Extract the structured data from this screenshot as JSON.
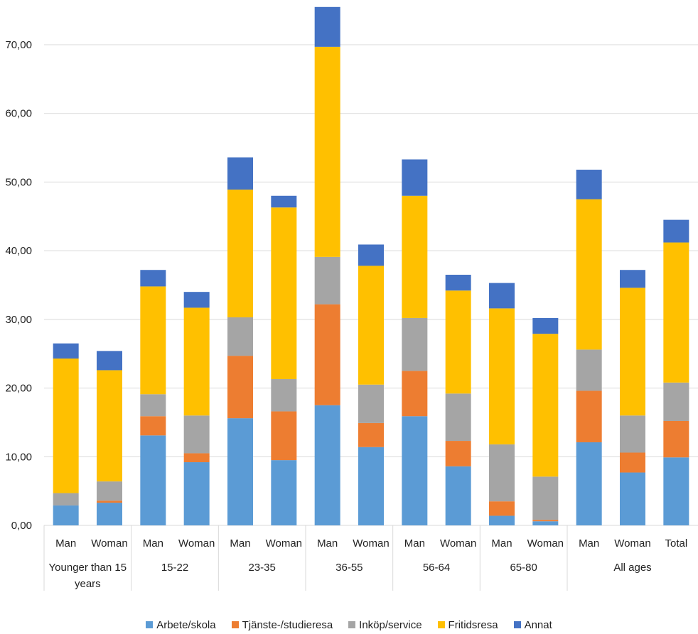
{
  "chart_data": {
    "type": "bar",
    "stacked": true,
    "title": "",
    "xlabel": "",
    "ylabel": "",
    "ylim": [
      0,
      75
    ],
    "yticks": [
      0,
      10,
      20,
      30,
      40,
      50,
      60,
      70
    ],
    "ytick_labels": [
      "0,00",
      "10,00",
      "20,00",
      "30,00",
      "40,00",
      "50,00",
      "60,00",
      "70,00"
    ],
    "grid": true,
    "legend_position": "bottom",
    "categories": [
      "Man",
      "Woman",
      "Man",
      "Woman",
      "Man",
      "Woman",
      "Man",
      "Woman",
      "Man",
      "Woman",
      "Man",
      "Woman",
      "Man",
      "Woman",
      "Total"
    ],
    "groups": [
      {
        "label": "Younger than 15 years",
        "label_lines": [
          "Younger than 15",
          "years"
        ],
        "span": 2
      },
      {
        "label": "15-22",
        "label_lines": [
          "15-22"
        ],
        "span": 2
      },
      {
        "label": "23-35",
        "label_lines": [
          "23-35"
        ],
        "span": 2
      },
      {
        "label": "36-55",
        "label_lines": [
          "36-55"
        ],
        "span": 2
      },
      {
        "label": "56-64",
        "label_lines": [
          "56-64"
        ],
        "span": 2
      },
      {
        "label": "65-80",
        "label_lines": [
          "65-80"
        ],
        "span": 2
      },
      {
        "label": "All ages",
        "label_lines": [
          "All ages"
        ],
        "span": 3
      }
    ],
    "series": [
      {
        "name": "Arbete/skola",
        "color": "#5b9bd5",
        "values": [
          2.9,
          3.3,
          13.1,
          9.2,
          15.6,
          9.5,
          17.5,
          11.4,
          15.9,
          8.6,
          1.4,
          0.6,
          12.1,
          7.7,
          9.9
        ]
      },
      {
        "name": "Tjänste-/studieresa",
        "color": "#ed7d31",
        "values": [
          0.0,
          0.3,
          2.8,
          1.3,
          9.1,
          7.1,
          14.7,
          3.5,
          6.6,
          3.7,
          2.1,
          0.2,
          7.5,
          2.9,
          5.3
        ]
      },
      {
        "name": "Inköp/service",
        "color": "#a5a5a5",
        "values": [
          1.8,
          2.8,
          3.2,
          5.5,
          5.6,
          4.7,
          6.9,
          5.6,
          7.7,
          6.9,
          8.3,
          6.3,
          6.0,
          5.4,
          5.6
        ]
      },
      {
        "name": "Fritidsresa",
        "color": "#ffc000",
        "values": [
          19.6,
          16.2,
          15.7,
          15.7,
          18.6,
          25.0,
          30.6,
          17.3,
          17.8,
          15.0,
          19.8,
          20.8,
          21.9,
          18.6,
          20.4
        ]
      },
      {
        "name": "Annat",
        "color": "#4472c4",
        "values": [
          2.2,
          2.8,
          2.4,
          2.3,
          4.7,
          1.7,
          5.8,
          3.1,
          5.3,
          2.3,
          3.7,
          2.3,
          4.3,
          2.6,
          3.3
        ]
      }
    ]
  }
}
